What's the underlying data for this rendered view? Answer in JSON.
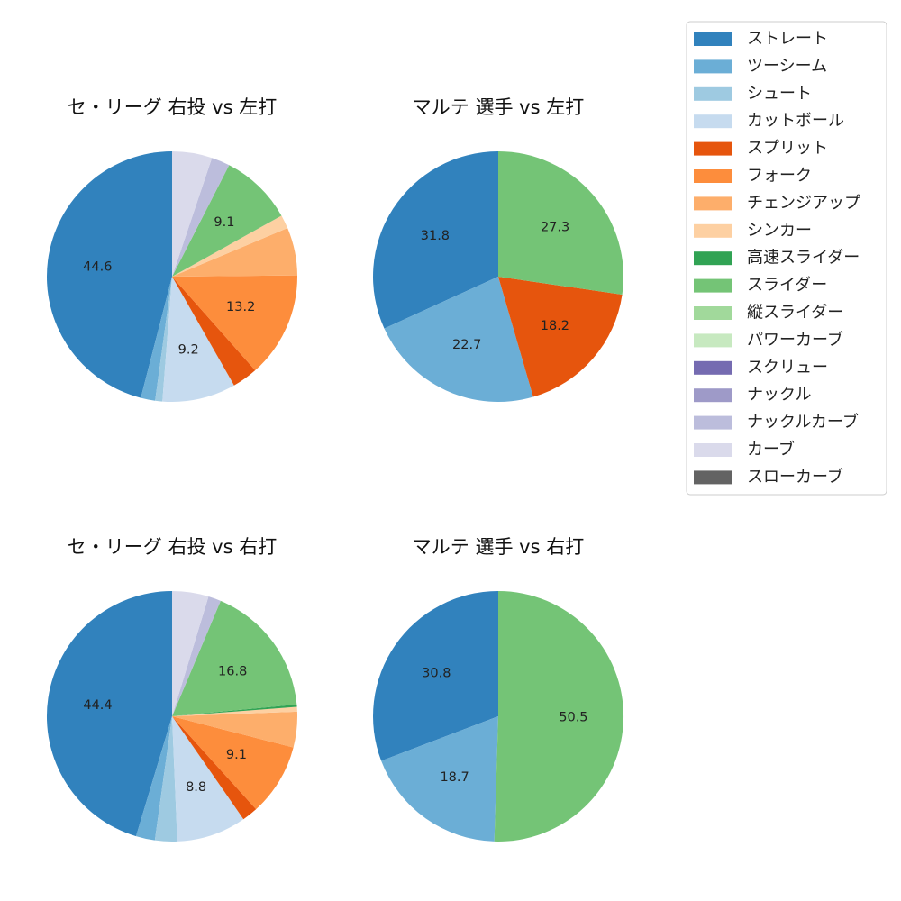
{
  "legend": {
    "items": [
      {
        "name": "ストレート",
        "color": "#3182bd"
      },
      {
        "name": "ツーシーム",
        "color": "#6baed6"
      },
      {
        "name": "シュート",
        "color": "#9ecae1"
      },
      {
        "name": "カットボール",
        "color": "#c6dbef"
      },
      {
        "name": "スプリット",
        "color": "#e6550d"
      },
      {
        "name": "フォーク",
        "color": "#fd8d3c"
      },
      {
        "name": "チェンジアップ",
        "color": "#fdae6b"
      },
      {
        "name": "シンカー",
        "color": "#fdd0a2"
      },
      {
        "name": "高速スライダー",
        "color": "#31a354"
      },
      {
        "name": "スライダー",
        "color": "#74c476"
      },
      {
        "name": "縦スライダー",
        "color": "#a1d99b"
      },
      {
        "name": "パワーカーブ",
        "color": "#c7e9c0"
      },
      {
        "name": "スクリュー",
        "color": "#756bb1"
      },
      {
        "name": "ナックル",
        "color": "#9e9ac8"
      },
      {
        "name": "ナックルカーブ",
        "color": "#bcbddc"
      },
      {
        "name": "カーブ",
        "color": "#dadaeb"
      },
      {
        "name": "スローカーブ",
        "color": "#636363"
      }
    ]
  },
  "chart_data": [
    {
      "type": "pie",
      "title": "セ・リーグ 右投 vs 左打",
      "slices": [
        {
          "name": "ストレート",
          "value": 44.6,
          "label": "44.6"
        },
        {
          "name": "ツーシーム",
          "value": 1.8,
          "label": ""
        },
        {
          "name": "シュート",
          "value": 0.9,
          "label": ""
        },
        {
          "name": "カットボール",
          "value": 9.2,
          "label": "9.2"
        },
        {
          "name": "スプリット",
          "value": 3.2,
          "label": ""
        },
        {
          "name": "フォーク",
          "value": 13.2,
          "label": "13.2"
        },
        {
          "name": "チェンジアップ",
          "value": 6.0,
          "label": ""
        },
        {
          "name": "シンカー",
          "value": 1.7,
          "label": ""
        },
        {
          "name": "スライダー",
          "value": 9.1,
          "label": "9.1"
        },
        {
          "name": "ナックルカーブ",
          "value": 2.3,
          "label": ""
        },
        {
          "name": "カーブ",
          "value": 5.0,
          "label": ""
        }
      ]
    },
    {
      "type": "pie",
      "title": "マルテ 選手 vs 左打",
      "slices": [
        {
          "name": "ストレート",
          "value": 31.8,
          "label": "31.8"
        },
        {
          "name": "ツーシーム",
          "value": 22.7,
          "label": "22.7"
        },
        {
          "name": "スプリット",
          "value": 18.2,
          "label": "18.2"
        },
        {
          "name": "スライダー",
          "value": 27.3,
          "label": "27.3"
        }
      ]
    },
    {
      "type": "pie",
      "title": "セ・リーグ 右投 vs 右打",
      "slices": [
        {
          "name": "ストレート",
          "value": 44.4,
          "label": "44.4"
        },
        {
          "name": "ツーシーム",
          "value": 2.4,
          "label": ""
        },
        {
          "name": "シュート",
          "value": 2.8,
          "label": ""
        },
        {
          "name": "カットボール",
          "value": 8.8,
          "label": "8.8"
        },
        {
          "name": "スプリット",
          "value": 2.0,
          "label": ""
        },
        {
          "name": "フォーク",
          "value": 9.1,
          "label": "9.1"
        },
        {
          "name": "チェンジアップ",
          "value": 4.5,
          "label": ""
        },
        {
          "name": "シンカー",
          "value": 0.6,
          "label": ""
        },
        {
          "name": "高速スライダー",
          "value": 0.3,
          "label": ""
        },
        {
          "name": "スライダー",
          "value": 16.8,
          "label": "16.8"
        },
        {
          "name": "ナックルカーブ",
          "value": 1.6,
          "label": ""
        },
        {
          "name": "カーブ",
          "value": 4.6,
          "label": ""
        }
      ]
    },
    {
      "type": "pie",
      "title": "マルテ 選手 vs 右打",
      "slices": [
        {
          "name": "ストレート",
          "value": 30.8,
          "label": "30.8"
        },
        {
          "name": "ツーシーム",
          "value": 18.7,
          "label": "18.7"
        },
        {
          "name": "スライダー",
          "value": 50.5,
          "label": "50.5"
        }
      ]
    }
  ]
}
